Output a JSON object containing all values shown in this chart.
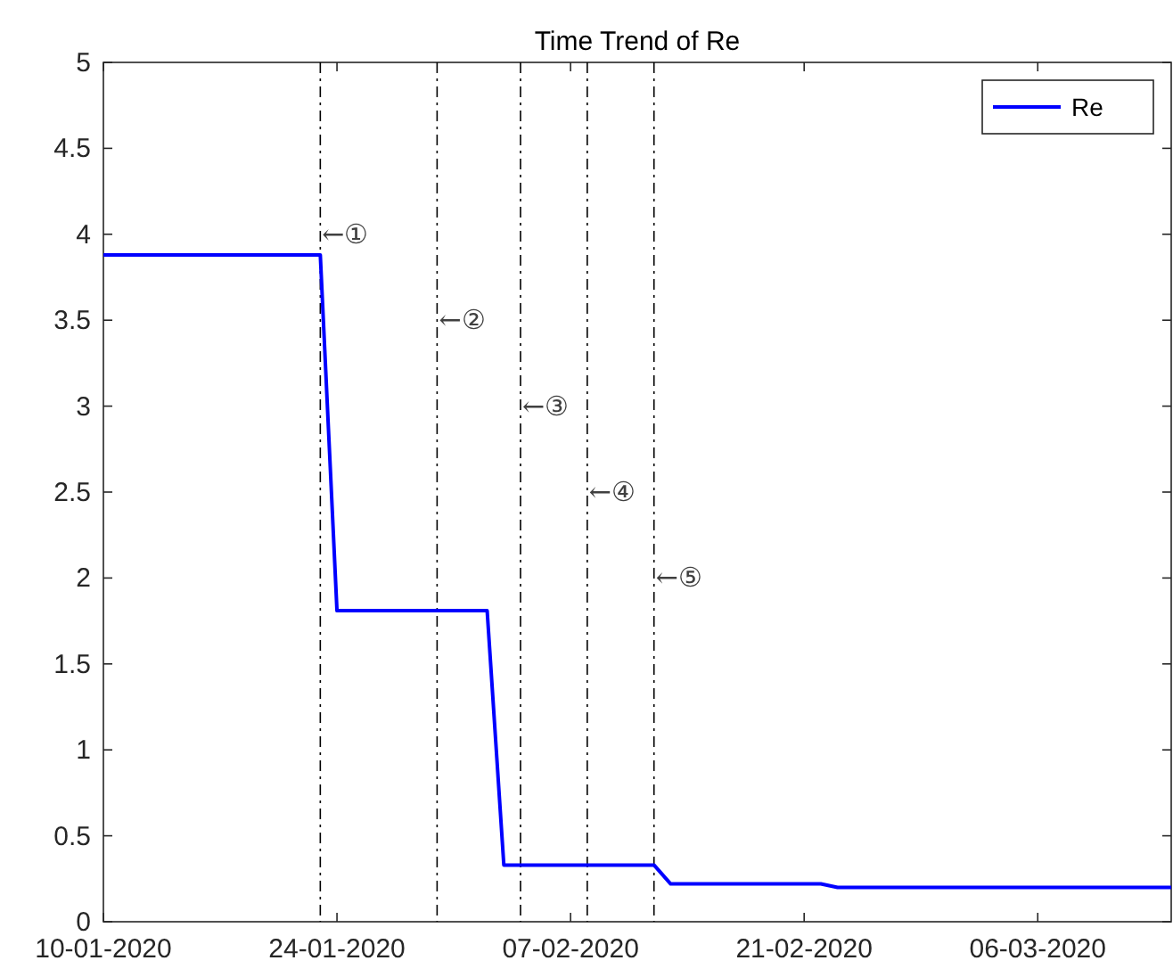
{
  "chart_data": {
    "type": "line",
    "title": "Time Trend of Re",
    "x": [
      "2020-01-10",
      "2020-01-23",
      "2020-01-24",
      "2020-02-02",
      "2020-02-03",
      "2020-02-12",
      "2020-02-13",
      "2020-02-22",
      "2020-02-23",
      "2020-03-14"
    ],
    "series": [
      {
        "name": "Re",
        "color": "#0000ff",
        "values": [
          3.88,
          3.88,
          1.81,
          1.81,
          0.33,
          0.33,
          0.22,
          0.22,
          0.2,
          0.2
        ]
      }
    ],
    "xlim": [
      "2020-01-10",
      "2020-03-14"
    ],
    "xticks": [
      {
        "value": "2020-01-10",
        "label": "10-01-2020"
      },
      {
        "value": "2020-01-24",
        "label": "24-01-2020"
      },
      {
        "value": "2020-02-07",
        "label": "07-02-2020"
      },
      {
        "value": "2020-02-21",
        "label": "21-02-2020"
      },
      {
        "value": "2020-03-06",
        "label": "06-03-2020"
      }
    ],
    "ylim": [
      0,
      5
    ],
    "yticks": [
      0,
      0.5,
      1,
      1.5,
      2,
      2.5,
      3,
      3.5,
      4,
      4.5,
      5
    ],
    "ref_lines": [
      {
        "axis": "x",
        "value": "2020-01-23",
        "color": "#000000",
        "line_style": "dashdot"
      },
      {
        "axis": "x",
        "value": "2020-01-30",
        "color": "#000000",
        "line_style": "dashdot"
      },
      {
        "axis": "x",
        "value": "2020-02-04",
        "color": "#000000",
        "line_style": "dashdot"
      },
      {
        "axis": "x",
        "value": "2020-02-08",
        "color": "#000000",
        "line_style": "dashdot"
      },
      {
        "axis": "x",
        "value": "2020-02-12",
        "color": "#000000",
        "line_style": "dashdot"
      }
    ],
    "annotations": [
      {
        "text": "←①",
        "x": "2020-01-23",
        "y": 4
      },
      {
        "text": "←②",
        "x": "2020-01-30",
        "y": 3.5
      },
      {
        "text": "←③",
        "x": "2020-02-04",
        "y": 3
      },
      {
        "text": "←④",
        "x": "2020-02-08",
        "y": 2.5
      },
      {
        "text": "←⑤",
        "x": "2020-02-12",
        "y": 2
      }
    ],
    "legend": "top right",
    "grid": false,
    "marker": "none",
    "line_style": "solid"
  }
}
